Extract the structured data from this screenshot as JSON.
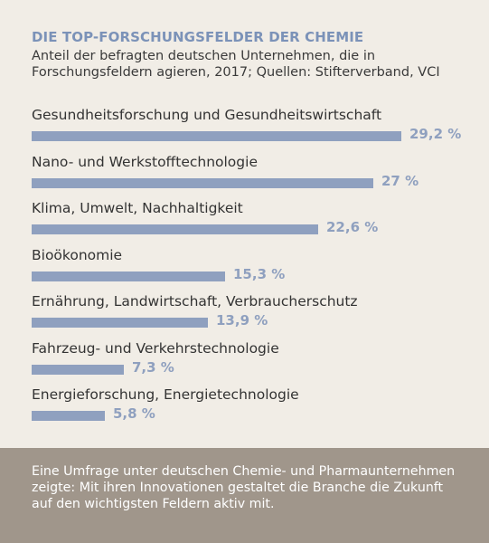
{
  "title": "DIE TOP-FORSCHUNGSFELDER DER CHEMIE",
  "subtitle": "Anteil der befragten deutschen Unternehmen, die in Forschungsfeldern agieren, 2017; Quellen: Stifterverband, VCI",
  "footer": {
    "text": "Eine Umfrage unter deutschen Chemie- und Pharma­unternehmen zeigte: Mit ihren Innovationen gestaltet die Branche die Zukunft auf den wichtigsten Feldern aktiv mit."
  },
  "colors": {
    "bar": "#8fa0bf",
    "title": "#7b92b8",
    "footer_bg": "#a0968b",
    "background": "#f1ede6"
  },
  "chart_data": {
    "type": "bar",
    "orientation": "horizontal",
    "categories": [
      "Gesundheitsforschung und Gesundheitswirtschaft",
      "Nano- und Werkstofftechnologie",
      "Klima, Umwelt, Nachhaltigkeit",
      "Bioökonomie",
      "Ernährung, Landwirtschaft, Verbraucherschutz",
      "Fahrzeug- und Verkehrstechnologie",
      "Energieforschung, Energietechnologie"
    ],
    "values": [
      29.2,
      27,
      22.6,
      15.3,
      13.9,
      7.3,
      5.8
    ],
    "value_labels": [
      "29,2 %",
      "27 %",
      "22,6 %",
      "15,3 %",
      "13,9 %",
      "7,3 %",
      "5,8 %"
    ],
    "unit": "%",
    "grid": false,
    "axes_visible": false
  }
}
